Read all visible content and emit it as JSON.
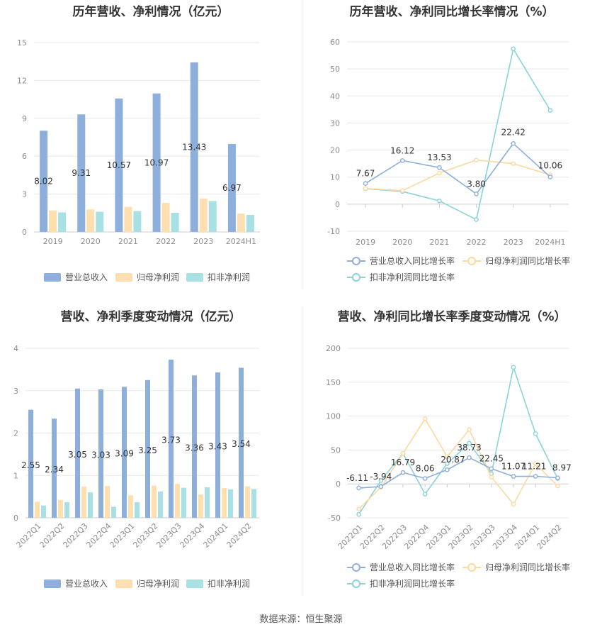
{
  "source": "数据来源：恒生聚源",
  "legend_labels": {
    "bars": [
      "营业总收入",
      "归母净利润",
      "扣非净利润"
    ],
    "lines": [
      "营业总收入同比增长率",
      "归母净利润同比增长率",
      "扣非净利润同比增长率"
    ]
  },
  "colors": {
    "revenue": "#8eaedc",
    "net_profit": "#fddfb0",
    "deducted": "#a8e0e4",
    "revenue_line": "#8eaedc",
    "net_line": "#fcd9a0",
    "deducted_line": "#88d4da"
  },
  "chart_data": [
    {
      "type": "bar",
      "title": "历年营收、净利情况（亿元）",
      "categories": [
        "2019",
        "2020",
        "2021",
        "2022",
        "2023",
        "2024H1"
      ],
      "ylim": [
        0,
        15
      ],
      "yticks": [
        "0",
        "3",
        "6",
        "9",
        "12",
        "15"
      ],
      "series": [
        {
          "name": "营业总收入",
          "values": [
            8.02,
            9.31,
            10.57,
            10.97,
            13.43,
            6.97
          ],
          "labels": [
            "8.02",
            "9.31",
            "10.57",
            "10.97",
            "13.43",
            "6.97"
          ]
        },
        {
          "name": "归母净利润",
          "values": [
            1.7,
            1.78,
            1.98,
            2.3,
            2.65,
            1.45
          ]
        },
        {
          "name": "扣非净利润",
          "values": [
            1.55,
            1.6,
            1.65,
            1.52,
            2.45,
            1.35
          ]
        }
      ]
    },
    {
      "type": "line",
      "title": "历年营收、净利同比增长率情况（%）",
      "categories": [
        "2019",
        "2020",
        "2021",
        "2022",
        "2023",
        "2024H1"
      ],
      "ylim": [
        -10,
        60
      ],
      "yticks": [
        "-10",
        "0",
        "10",
        "20",
        "30",
        "40",
        "50",
        "60"
      ],
      "series": [
        {
          "name": "营业总收入同比增长率",
          "values": [
            7.67,
            16.12,
            13.53,
            3.8,
            22.42,
            10.06
          ],
          "labels": [
            "7.67",
            "16.12",
            "13.53",
            "3.80",
            "22.42",
            "10.06"
          ]
        },
        {
          "name": "归母净利润同比增长率",
          "values": [
            5.8,
            5.0,
            11.5,
            16.3,
            15.0,
            10.8
          ]
        },
        {
          "name": "扣非净利润同比增长率",
          "values": [
            5.7,
            4.7,
            1.2,
            -5.7,
            57.4,
            34.7
          ]
        }
      ]
    },
    {
      "type": "bar",
      "title": "营收、净利季度变动情况（亿元）",
      "categories": [
        "2022Q1",
        "2022Q2",
        "2022Q3",
        "2022Q4",
        "2023Q1",
        "2023Q2",
        "2023Q3",
        "2023Q4",
        "2024Q1",
        "2024Q2"
      ],
      "ylim": [
        0,
        4
      ],
      "yticks": [
        "0",
        "1",
        "2",
        "3",
        "4"
      ],
      "series": [
        {
          "name": "营业总收入",
          "values": [
            2.55,
            2.34,
            3.05,
            3.03,
            3.09,
            3.25,
            3.73,
            3.36,
            3.43,
            3.54
          ],
          "labels": [
            "2.55",
            "2.34",
            "3.05",
            "3.03",
            "3.09",
            "3.25",
            "3.73",
            "3.36",
            "3.43",
            "3.54"
          ]
        },
        {
          "name": "归母净利润",
          "values": [
            0.38,
            0.42,
            0.74,
            0.75,
            0.53,
            0.76,
            0.8,
            0.55,
            0.7,
            0.74
          ]
        },
        {
          "name": "扣非净利润",
          "values": [
            0.29,
            0.37,
            0.6,
            0.26,
            0.37,
            0.62,
            0.71,
            0.72,
            0.67,
            0.68
          ]
        }
      ]
    },
    {
      "type": "line",
      "title": "营收、净利同比增长率季度变动情况（%）",
      "categories": [
        "2022Q1",
        "2022Q2",
        "2022Q3",
        "2022Q4",
        "2023Q1",
        "2023Q2",
        "2023Q3",
        "2023Q4",
        "2024Q1",
        "2024Q2"
      ],
      "ylim": [
        -50,
        200
      ],
      "yticks": [
        "-50",
        "0",
        "50",
        "100",
        "150",
        "200"
      ],
      "series": [
        {
          "name": "营业总收入同比增长率",
          "values": [
            -6.11,
            -3.94,
            16.79,
            8.06,
            20.87,
            38.73,
            22.45,
            11.07,
            11.21,
            8.97
          ],
          "labels": [
            "-6.11",
            "-3.94",
            "16.79",
            "8.06",
            "20.87",
            "38.73",
            "22.45",
            "11.07",
            "11.21",
            "8.97"
          ]
        },
        {
          "name": "归母净利润同比增长率",
          "values": [
            -37,
            -5,
            45,
            96,
            40,
            80,
            10,
            -30,
            30,
            -3
          ]
        },
        {
          "name": "扣非净利润同比增长率",
          "values": [
            -45,
            5,
            45,
            -15,
            30,
            60,
            15,
            172,
            74,
            8
          ]
        }
      ]
    }
  ]
}
